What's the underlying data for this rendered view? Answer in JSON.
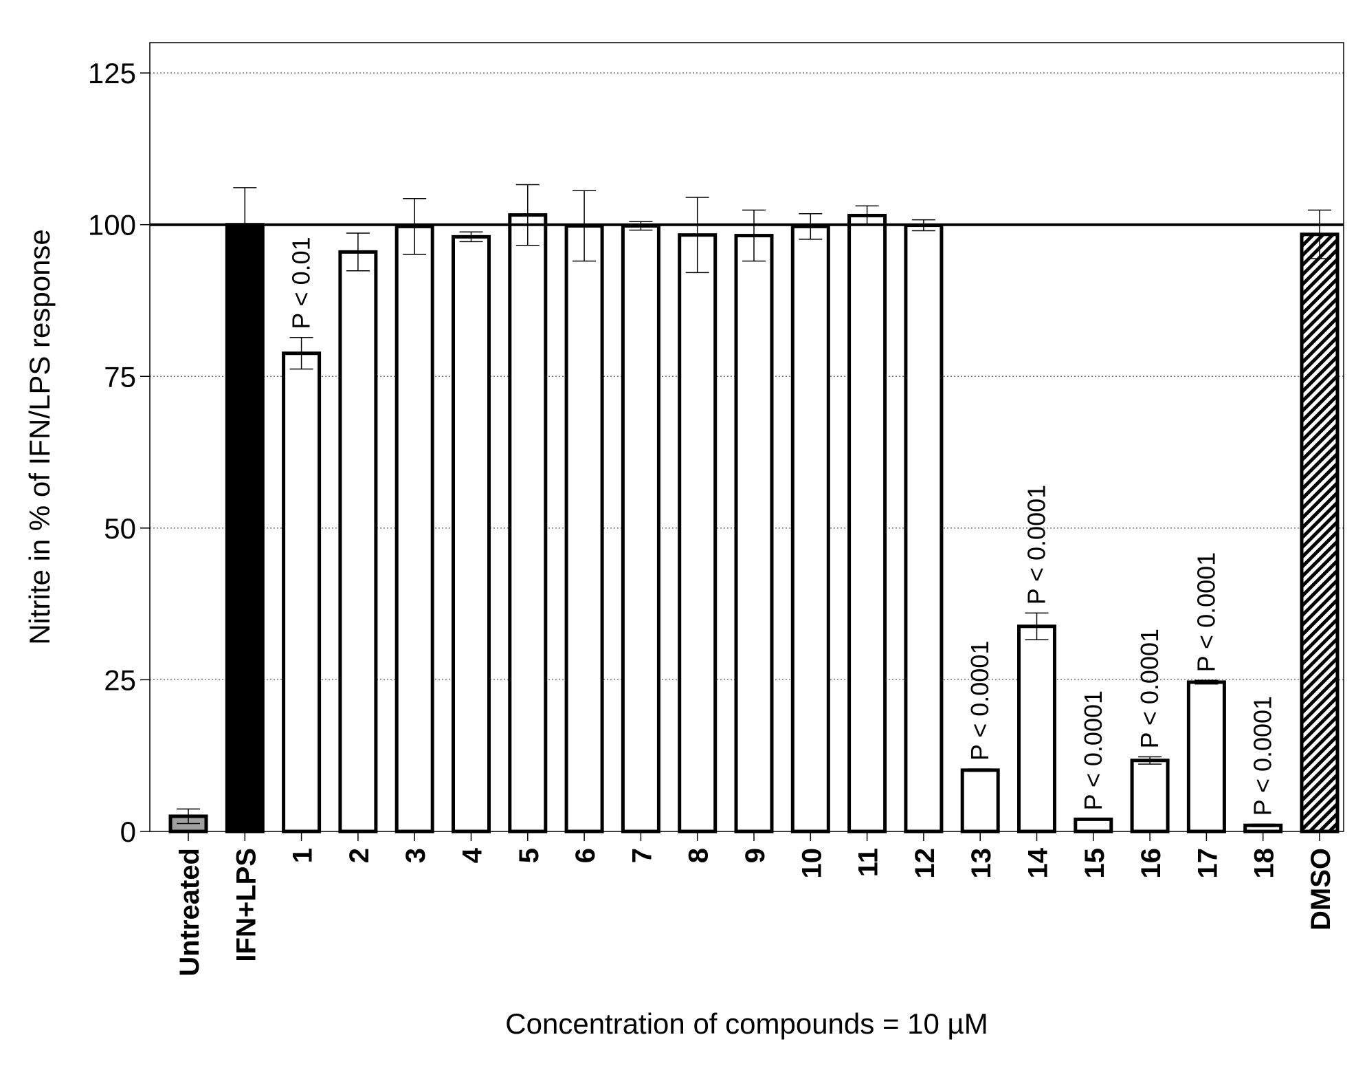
{
  "chart_data": {
    "type": "bar",
    "title": "",
    "xlabel": "Concentration of compounds = 10 µM",
    "ylabel": "Nitrite in % of IFN/LPS response",
    "ylim": [
      0,
      130
    ],
    "yticks": [
      0,
      25,
      50,
      75,
      100,
      125
    ],
    "grid": "horizontal-dotted",
    "reference_line": 100,
    "categories": [
      "Untreated",
      "IFN+LPS",
      "1",
      "2",
      "3",
      "4",
      "5",
      "6",
      "7",
      "8",
      "9",
      "10",
      "11",
      "12",
      "13",
      "14",
      "15",
      "16",
      "17",
      "18",
      "DMSO"
    ],
    "values": [
      2.5,
      100,
      78.8,
      95.5,
      99.7,
      98,
      101.6,
      99.8,
      99.8,
      98.3,
      98.2,
      99.7,
      101.5,
      99.9,
      10.1,
      33.8,
      2,
      11.7,
      24.6,
      1,
      98.4
    ],
    "errors": [
      1.2,
      6.1,
      2.6,
      3.1,
      4.6,
      0.8,
      5,
      5.8,
      0.7,
      6.2,
      4.2,
      2.1,
      1.6,
      0.9,
      0.2,
      2.2,
      0.1,
      0.6,
      0.3,
      0.2,
      4
    ],
    "fills": [
      "#a0a0a0",
      "#000000",
      "#ffffff",
      "#ffffff",
      "#ffffff",
      "#ffffff",
      "#ffffff",
      "#ffffff",
      "#ffffff",
      "#ffffff",
      "#ffffff",
      "#ffffff",
      "#ffffff",
      "#ffffff",
      "#ffffff",
      "#ffffff",
      "#ffffff",
      "#ffffff",
      "#ffffff",
      "#ffffff",
      "hatch"
    ],
    "annotations": [
      {
        "category": "1",
        "text": "P < 0.01"
      },
      {
        "category": "13",
        "text": "P < 0.0001"
      },
      {
        "category": "14",
        "text": "P < 0.0001"
      },
      {
        "category": "15",
        "text": "P < 0.0001"
      },
      {
        "category": "16",
        "text": "P < 0.0001"
      },
      {
        "category": "17",
        "text": "P < 0.0001"
      },
      {
        "category": "18",
        "text": "P < 0.0001"
      }
    ]
  }
}
